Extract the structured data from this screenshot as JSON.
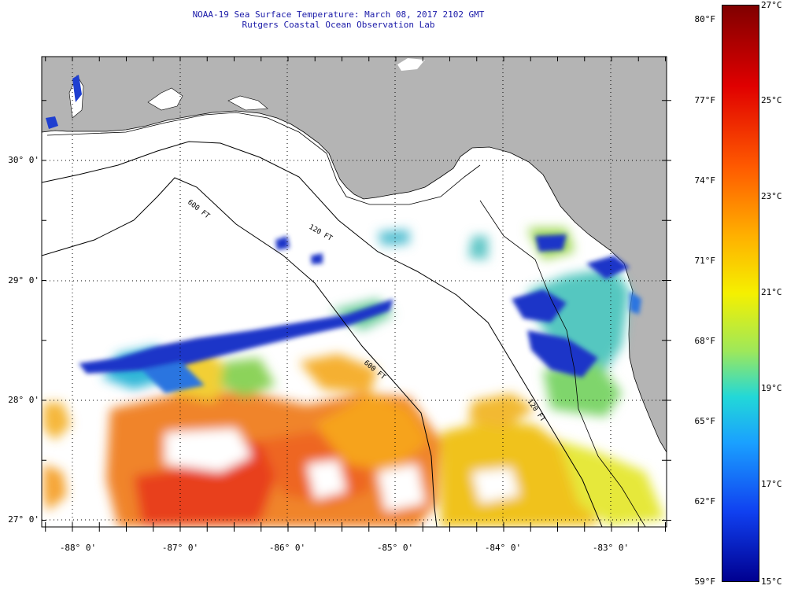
{
  "title": {
    "line1": "NOAA-19 Sea Surface Temperature:  March 08, 2017 2102 GMT",
    "line2": "Rutgers Coastal Ocean Observation Lab"
  },
  "map": {
    "latitude_labels": [
      "30° 0'",
      "29° 0'",
      "28° 0'",
      "27° 0'"
    ],
    "longitude_labels": [
      "-88° 0'",
      "-87° 0'",
      "-86° 0'",
      "-85° 0'",
      "-84° 0'",
      "-83° 0'"
    ],
    "contour_labels": [
      "600 FT",
      "120 FT",
      "600 FT",
      "120 FT"
    ],
    "colors": {
      "land": "#b4b4b4",
      "cloud_mask": "#ffffff",
      "grid": "#000000"
    }
  },
  "colorbar": {
    "fahrenheit_labels": [
      "80°F",
      "77°F",
      "74°F",
      "71°F",
      "68°F",
      "65°F",
      "62°F",
      "59°F"
    ],
    "celsius_labels": [
      "27°C",
      "25°C",
      "23°C",
      "21°C",
      "19°C",
      "17°C",
      "15°C"
    ],
    "min_c": 15,
    "max_c": 27
  }
}
